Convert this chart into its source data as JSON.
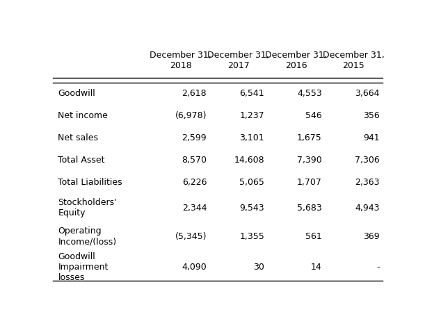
{
  "columns": [
    "December 31,\n2018",
    "December 31,\n2017",
    "December 31,\n2016",
    "December 31,\n2015"
  ],
  "rows": [
    {
      "label": "Goodwill",
      "values": [
        "2,618",
        "6,541",
        "4,553",
        "3,664"
      ]
    },
    {
      "label": "Net income",
      "values": [
        "(6,978)",
        "1,237",
        "546",
        "356"
      ]
    },
    {
      "label": "Net sales",
      "values": [
        "2,599",
        "3,101",
        "1,675",
        "941"
      ]
    },
    {
      "label": "Total Asset",
      "values": [
        "8,570",
        "14,608",
        "7,390",
        "7,306"
      ]
    },
    {
      "label": "Total Liabilities",
      "values": [
        "6,226",
        "5,065",
        "1,707",
        "2,363"
      ]
    },
    {
      "label": "Stockholders'\nEquity",
      "values": [
        "2,344",
        "9,543",
        "5,683",
        "4,943"
      ]
    },
    {
      "label": "Operating\nIncome/(loss)",
      "values": [
        "(5,345)",
        "1,355",
        "561",
        "369"
      ]
    },
    {
      "label": "Goodwill\nImpairment\nlosses",
      "values": [
        "4,090",
        "30",
        "14",
        "-"
      ]
    }
  ],
  "bg_color": "#ffffff",
  "text_color": "#000000",
  "font_size": 9,
  "header_font_size": 9,
  "figsize": [
    6.11,
    4.62
  ],
  "dpi": 100
}
